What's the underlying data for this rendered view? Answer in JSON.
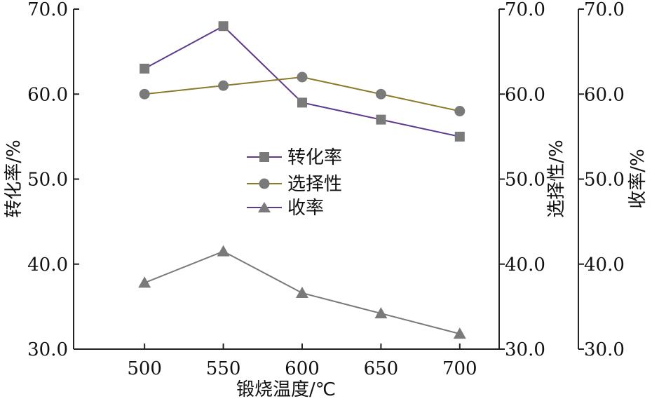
{
  "chart_data": {
    "type": "line",
    "xlabel": "锻烧温度/℃",
    "x": [
      500,
      550,
      600,
      650,
      700
    ],
    "xticks": [
      "500",
      "550",
      "600",
      "650",
      "700"
    ],
    "xlim": [
      455,
      725
    ],
    "ylim": [
      30,
      70
    ],
    "yticks": [
      "30.0",
      "40.0",
      "50.0",
      "60.0",
      "70.0"
    ],
    "ylabels": {
      "left": "转化率/%",
      "right1": "选择性/%",
      "right2": "收率/%"
    },
    "grid": false,
    "legend_position": "center",
    "series": [
      {
        "name": "转化率",
        "marker": "square",
        "color": "#5c3a8c",
        "values": [
          63.0,
          68.0,
          59.0,
          57.0,
          55.0
        ]
      },
      {
        "name": "选择性",
        "marker": "circle",
        "color": "#8a7a2a",
        "values": [
          60.0,
          61.0,
          62.0,
          60.0,
          58.0
        ]
      },
      {
        "name": "收率",
        "marker": "triangle",
        "color": "#7a7a7a",
        "values": [
          37.8,
          41.5,
          36.6,
          34.2,
          31.8
        ]
      }
    ]
  }
}
